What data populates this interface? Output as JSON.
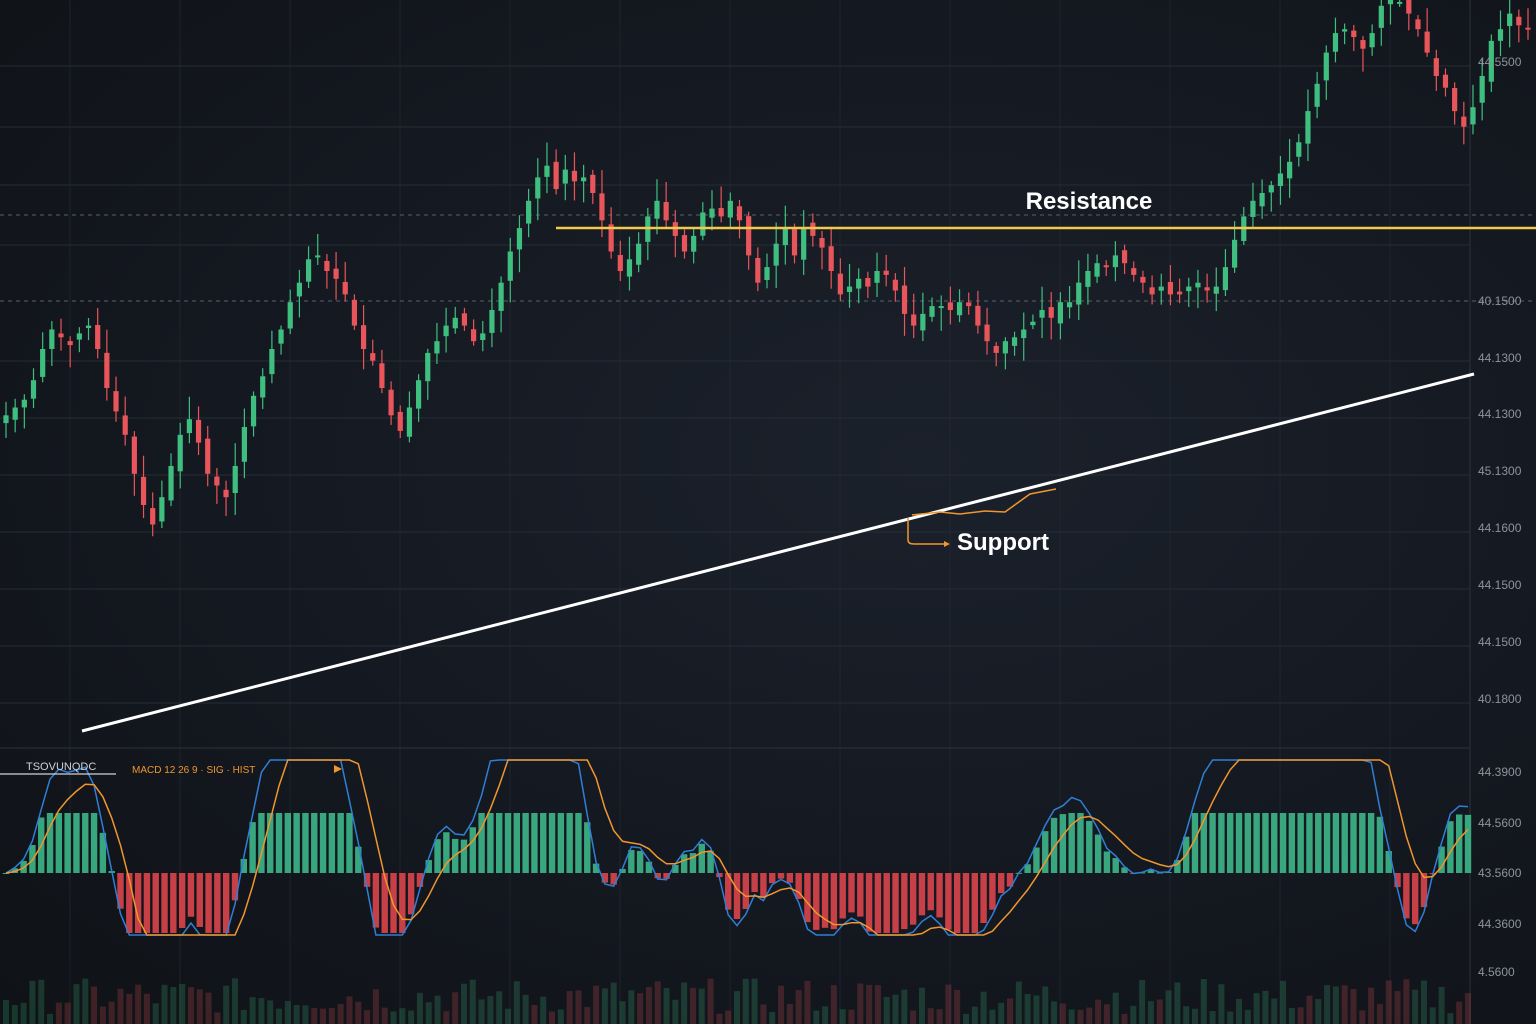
{
  "colors": {
    "background": "#141820",
    "up": "#3fbf7f",
    "down": "#e8555a",
    "resistance": "#f2c94c",
    "support_line": "#ffffff",
    "macd": "#2f7fd6",
    "signal": "#f0962e",
    "hist_up": "#3fbf8f",
    "hist_down": "#e8484f",
    "annotation_text": "#ffffff",
    "grid": "#262c36"
  },
  "chart_data": [
    {
      "type": "candlestick",
      "title": "",
      "grid": true,
      "price_axis_labels": [
        "44.5500",
        "40.1500",
        "44.1300",
        "44.1300",
        "45.1300",
        "44.1600",
        "44.1500",
        "44.1500",
        "40.1800"
      ],
      "annotations": [
        {
          "text": "Resistance",
          "kind": "horizontal-line"
        },
        {
          "text": "Support",
          "kind": "trendline"
        }
      ],
      "close_values": [
        73,
        75,
        77,
        82,
        90,
        95,
        93,
        91,
        94,
        96,
        90,
        80,
        74,
        68,
        58,
        50,
        45,
        52,
        60,
        68,
        72,
        66,
        58,
        55,
        52,
        60,
        70,
        78,
        83,
        90,
        95,
        102,
        107,
        113,
        114,
        110,
        108,
        104,
        96,
        90,
        87,
        80,
        73,
        69,
        75,
        82,
        89,
        92,
        96,
        98,
        96,
        92,
        94,
        100,
        107,
        115,
        121,
        128,
        134,
        137,
        131,
        136,
        133,
        134,
        130,
        123,
        115,
        110,
        113,
        117,
        124,
        128,
        123,
        119,
        115,
        119,
        125,
        126,
        124,
        128,
        123,
        114,
        107,
        111,
        117,
        121,
        114,
        121,
        119,
        116,
        110,
        104,
        106,
        108,
        106,
        110,
        109,
        105,
        99,
        96,
        99,
        101,
        101,
        100,
        102,
        101,
        96,
        92,
        89,
        92,
        93,
        95,
        97,
        100,
        98,
        102,
        102,
        107,
        110,
        112,
        111,
        114,
        112,
        109,
        107,
        104,
        106,
        104,
        104,
        106,
        107,
        105,
        106,
        111,
        118,
        124,
        128,
        130,
        132,
        135,
        138,
        143,
        151,
        158,
        166,
        171,
        172,
        170,
        167,
        171,
        178,
        180,
        179,
        176,
        172,
        166,
        160,
        157,
        151,
        147,
        152,
        160,
        169,
        172,
        176,
        173,
        172
      ]
    },
    {
      "type": "macd",
      "axis_labels": [
        "44.3900",
        "44.5600",
        "43.5600",
        "44.3600"
      ],
      "legend_text": "TSOVUNQDC",
      "legend_items": "MACD 12 26 9 · SIG · HIST"
    },
    {
      "type": "bar",
      "name": "volume",
      "axis_labels": [
        "4.5600"
      ]
    }
  ]
}
